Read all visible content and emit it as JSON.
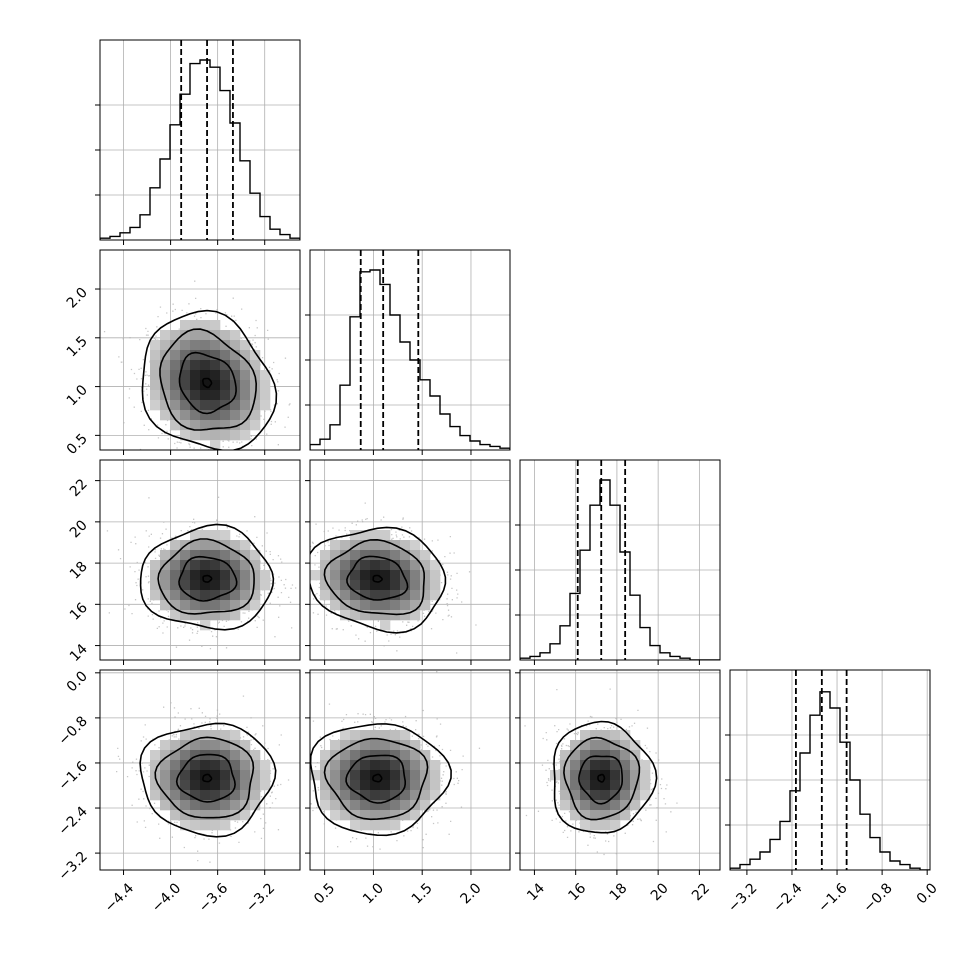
{
  "chart_data": {
    "type": "corner",
    "title": "",
    "parameters": [
      {
        "range": [
          -4.6,
          -2.9
        ],
        "ticks": [
          -4.4,
          -4.0,
          -3.6,
          -3.2
        ],
        "tick_labels": [
          "−4.4",
          "−4.0",
          "−3.6",
          "−3.2"
        ],
        "quantiles": [
          -3.91,
          -3.69,
          -3.47
        ],
        "hist": [
          0.01,
          0.02,
          0.04,
          0.07,
          0.14,
          0.29,
          0.45,
          0.64,
          0.81,
          0.98,
          1.0,
          0.96,
          0.83,
          0.65,
          0.44,
          0.26,
          0.13,
          0.06,
          0.03,
          0.01
        ]
      },
      {
        "range": [
          0.35,
          2.4
        ],
        "ticks": [
          0.5,
          1.0,
          1.5,
          2.0
        ],
        "tick_labels": [
          "0.5",
          "1.0",
          "1.5",
          "2.0"
        ],
        "quantiles": [
          0.87,
          1.1,
          1.46
        ],
        "hist": [
          0.03,
          0.06,
          0.14,
          0.36,
          0.74,
          0.99,
          1.0,
          0.92,
          0.75,
          0.6,
          0.5,
          0.39,
          0.3,
          0.2,
          0.13,
          0.08,
          0.05,
          0.03,
          0.02,
          0.01
        ]
      },
      {
        "range": [
          13.3,
          23.0
        ],
        "ticks": [
          14,
          16,
          18,
          20,
          22
        ],
        "tick_labels": [
          "14",
          "16",
          "18",
          "20",
          "22"
        ],
        "quantiles": [
          16.1,
          17.24,
          18.4
        ],
        "hist": [
          0.01,
          0.02,
          0.04,
          0.09,
          0.19,
          0.37,
          0.61,
          0.86,
          1.0,
          0.86,
          0.6,
          0.36,
          0.18,
          0.08,
          0.04,
          0.02,
          0.01,
          0.0,
          0.0,
          0.0
        ]
      },
      {
        "range": [
          -3.5,
          0.05
        ],
        "ticks": [
          -3.2,
          -2.4,
          -1.6,
          -0.8,
          0.0
        ],
        "tick_labels": [
          "−3.2",
          "−2.4",
          "−1.6",
          "−0.8",
          "0.0"
        ],
        "quantiles": [
          -2.33,
          -1.87,
          -1.43
        ],
        "hist": [
          0.01,
          0.03,
          0.06,
          0.1,
          0.17,
          0.27,
          0.44,
          0.65,
          0.86,
          0.99,
          0.9,
          0.71,
          0.5,
          0.31,
          0.18,
          0.1,
          0.05,
          0.03,
          0.01,
          0.0
        ]
      }
    ],
    "pairs": [
      {
        "row": 1,
        "col": 0,
        "center": [
          -3.69,
          1.04
        ],
        "spread": [
          0.24,
          0.3
        ],
        "corr": -0.15
      },
      {
        "row": 2,
        "col": 0,
        "center": [
          -3.69,
          17.24
        ],
        "spread": [
          0.24,
          1.05
        ],
        "corr": 0.0
      },
      {
        "row": 2,
        "col": 1,
        "center": [
          1.04,
          17.24
        ],
        "spread": [
          0.3,
          1.05
        ],
        "corr": -0.1
      },
      {
        "row": 3,
        "col": 0,
        "center": [
          -3.69,
          -1.87
        ],
        "spread": [
          0.24,
          0.42
        ],
        "corr": 0.0
      },
      {
        "row": 3,
        "col": 1,
        "center": [
          1.04,
          -1.87
        ],
        "spread": [
          0.3,
          0.42
        ],
        "corr": 0.0
      },
      {
        "row": 3,
        "col": 2,
        "center": [
          17.24,
          -1.87
        ],
        "spread": [
          1.05,
          0.42
        ],
        "corr": 0.0
      }
    ],
    "grid": true,
    "colors": {
      "hist": "#000000",
      "density": "#000000",
      "points": "#b4b4b4",
      "grid": "#b0b0b0"
    }
  }
}
